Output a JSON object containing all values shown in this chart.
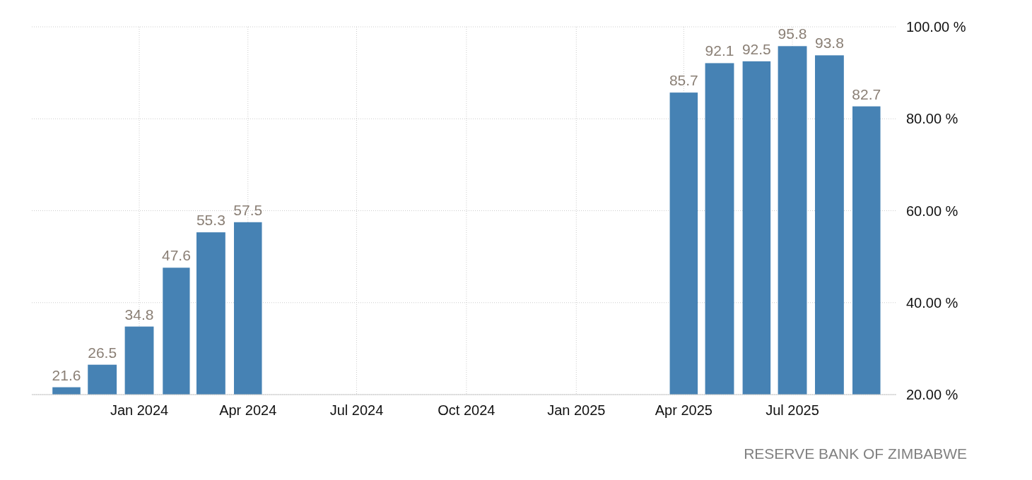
{
  "chart_data": {
    "type": "bar",
    "x": [
      "2023-11",
      "2023-12",
      "2024-01",
      "2024-02",
      "2024-03",
      "2024-04",
      "2025-04",
      "2025-05",
      "2025-06",
      "2025-07",
      "2025-08",
      "2025-09"
    ],
    "values": [
      21.6,
      26.5,
      34.8,
      47.6,
      55.3,
      57.5,
      85.7,
      92.1,
      92.5,
      95.8,
      93.8,
      82.7
    ],
    "color": "#4682b4",
    "data_labels": true,
    "xlim": [
      "2023-10-03",
      "2025-09-26"
    ],
    "xticks": [
      {
        "value": "2024-01",
        "label": "Jan 2024"
      },
      {
        "value": "2024-04",
        "label": "Apr 2024"
      },
      {
        "value": "2024-07",
        "label": "Jul 2024"
      },
      {
        "value": "2024-10",
        "label": "Oct 2024"
      },
      {
        "value": "2025-01",
        "label": "Jan 2025"
      },
      {
        "value": "2025-04",
        "label": "Apr 2025"
      },
      {
        "value": "2025-07",
        "label": "Jul 2025"
      }
    ],
    "ylim": [
      20,
      100
    ],
    "yticks": [
      {
        "value": 20,
        "label": "20.00 %"
      },
      {
        "value": 40,
        "label": "40.00 %"
      },
      {
        "value": 60,
        "label": "60.00 %"
      },
      {
        "value": 80,
        "label": "80.00 %"
      },
      {
        "value": 100,
        "label": "100.00 %"
      }
    ],
    "grid": true,
    "annotations": [
      "RESERVE BANK OF ZIMBABWE"
    ]
  }
}
